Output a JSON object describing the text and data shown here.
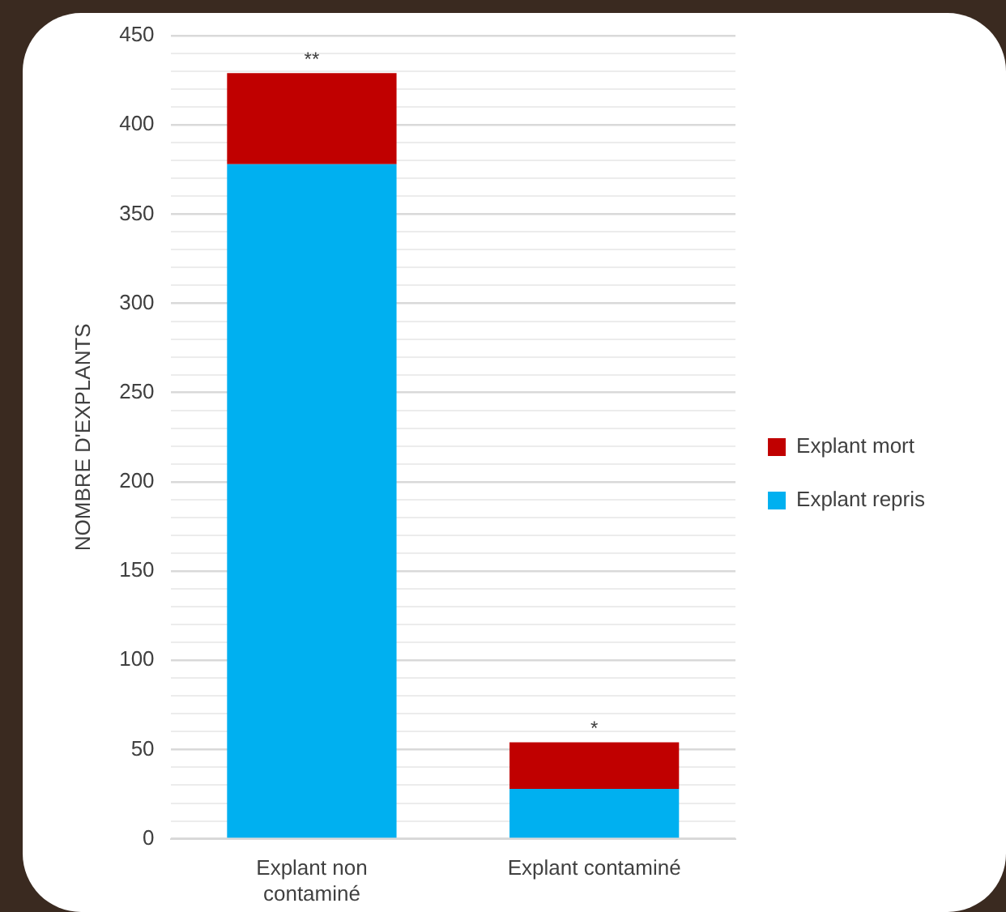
{
  "chart_data": {
    "type": "bar",
    "stacked": true,
    "ylabel": "NOMBRE D'EXPLANTS",
    "categories": [
      "Explant non contaminé",
      "Explant contaminé"
    ],
    "series": [
      {
        "name": "Explant repris",
        "color": "#00b0f0",
        "values": [
          378,
          28
        ]
      },
      {
        "name": "Explant mort",
        "color": "#c00000",
        "values": [
          51,
          26
        ]
      }
    ],
    "ylim": [
      0,
      450
    ],
    "yticks": [
      0,
      {
        "value": 10,
        "label": null
      },
      {
        "value": 20,
        "label": null
      },
      {
        "value": 30,
        "label": null
      },
      {
        "value": 40,
        "label": null
      },
      50,
      {
        "value": 60,
        "label": null
      },
      {
        "value": 70,
        "label": null
      },
      {
        "value": 80,
        "label": null
      },
      {
        "value": 90,
        "label": null
      },
      100,
      {
        "value": 110,
        "label": null
      },
      {
        "value": 120,
        "label": null
      },
      {
        "value": 130,
        "label": null
      },
      {
        "value": 140,
        "label": null
      },
      150,
      {
        "value": 160,
        "label": null
      },
      {
        "value": 170,
        "label": null
      },
      {
        "value": 180,
        "label": null
      },
      {
        "value": 190,
        "label": null
      },
      200,
      {
        "value": 210,
        "label": null
      },
      {
        "value": 220,
        "label": null
      },
      {
        "value": 230,
        "label": null
      },
      {
        "value": 240,
        "label": null
      },
      250,
      {
        "value": 260,
        "label": null
      },
      {
        "value": 270,
        "label": null
      },
      {
        "value": 280,
        "label": null
      },
      {
        "value": 290,
        "label": null
      },
      300,
      {
        "value": 310,
        "label": null
      },
      {
        "value": 320,
        "label": null
      },
      {
        "value": 330,
        "label": null
      },
      {
        "value": 340,
        "label": null
      },
      350,
      {
        "value": 360,
        "label": null
      },
      {
        "value": 370,
        "label": null
      },
      {
        "value": 380,
        "label": null
      },
      {
        "value": 390,
        "label": null
      },
      400,
      {
        "value": 410,
        "label": null
      },
      {
        "value": 420,
        "label": null
      },
      {
        "value": 430,
        "label": null
      },
      {
        "value": 440,
        "label": null
      },
      450
    ],
    "grid": "y",
    "legend": "right",
    "annotations": [
      {
        "text": "**",
        "x": "Explant non contaminé",
        "y": 429
      },
      {
        "text": "*",
        "x": "Explant contaminé",
        "y": 54
      }
    ]
  }
}
